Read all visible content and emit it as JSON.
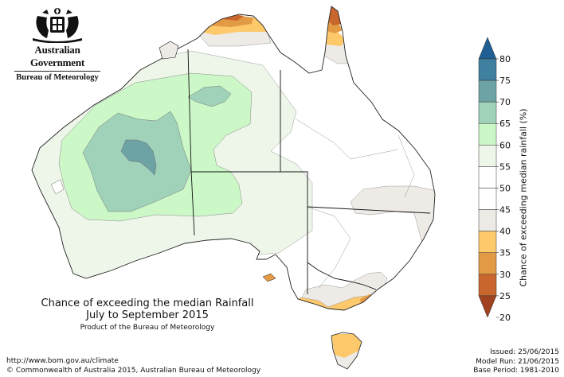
{
  "logo": {
    "government_name": "Australian Government",
    "agency_name": "Bureau of Meteorology"
  },
  "title": {
    "line1": "Chance of exceeding the median Rainfall",
    "line2": "July to September 2015",
    "subtitle": "Product of the Bureau of Meteorology"
  },
  "footer": {
    "url": "http://www.bom.gov.au/climate",
    "copyright": "© Commonwealth of Australia 2015, Australian Bureau of Meteorology",
    "issued": "Issued: 25/06/2015",
    "model_run": "Model Run: 21/06/2015",
    "base_period": "Base Period: 1981-2010"
  },
  "colorbar": {
    "title": "Chance of exceeding median rainfall (%)",
    "ticks": [
      "80",
      "75",
      "70",
      "65",
      "60",
      "55",
      "50",
      "45",
      "40",
      "35",
      "30",
      "25",
      "20"
    ],
    "bands": [
      {
        "from": 80,
        "to": 85,
        "color": "#1f5f93"
      },
      {
        "from": 75,
        "to": 80,
        "color": "#3f7fa0"
      },
      {
        "from": 70,
        "to": 75,
        "color": "#6ea3a6"
      },
      {
        "from": 65,
        "to": 70,
        "color": "#9fd2b9"
      },
      {
        "from": 60,
        "to": 65,
        "color": "#ccf8c8"
      },
      {
        "from": 55,
        "to": 60,
        "color": "#eef6ea"
      },
      {
        "from": 50,
        "to": 55,
        "color": "#ffffff"
      },
      {
        "from": 45,
        "to": 50,
        "color": "#ffffff"
      },
      {
        "from": 40,
        "to": 45,
        "color": "#eeeae6"
      },
      {
        "from": 35,
        "to": 40,
        "color": "#fdc96b"
      },
      {
        "from": 30,
        "to": 35,
        "color": "#e39a44"
      },
      {
        "from": 25,
        "to": 30,
        "color": "#c9662e"
      },
      {
        "from": 20,
        "to": 25,
        "color": "#a0421f"
      }
    ]
  }
}
